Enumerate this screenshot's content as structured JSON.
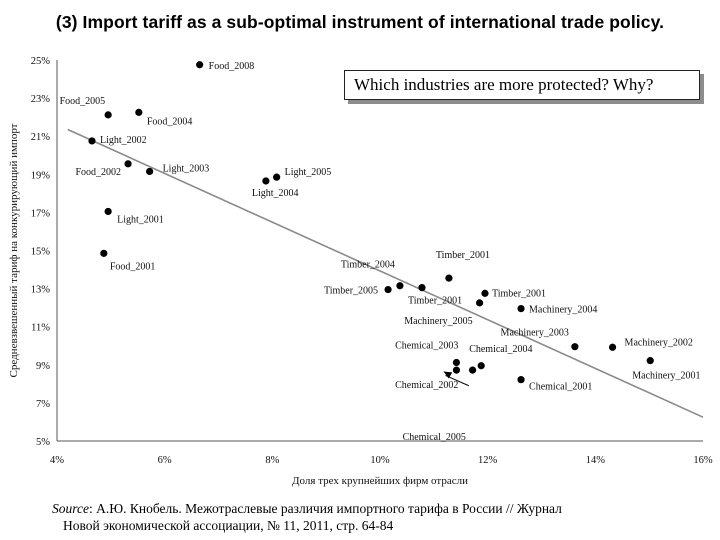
{
  "title": "(3) Import tariff as a sub-optimal instrument of international trade policy.",
  "callout": "Which industries are more protected? Why?",
  "source": {
    "label": "Source",
    "line1": ": А.Ю. Кнобель. Межотраслевые различия импортного тарифа в России // Журнал",
    "line2": "Новой экономической ассоциации, № 11, 2011,  стр. 64-84"
  },
  "chart_data": {
    "type": "scatter",
    "title": "",
    "xlabel": "Доля трех крупнейших фирм отрасли",
    "ylabel": "Средневзвешенный тариф на конкурирующий импорт",
    "xlim": [
      0.04,
      0.16
    ],
    "ylim": [
      0.05,
      0.25
    ],
    "x_ticks": [
      "4%",
      "6%",
      "8%",
      "10%",
      "12%",
      "14%",
      "16%"
    ],
    "y_ticks": [
      "5%",
      "7%",
      "9%",
      "11%",
      "13%",
      "15%",
      "17%",
      "19%",
      "21%",
      "23%",
      "25%"
    ],
    "grid": false,
    "trendline": {
      "x": [
        0.042,
        0.16
      ],
      "y": [
        0.2135,
        0.0625
      ]
    },
    "annotation_arrow": {
      "label": "Chemical_2005",
      "from": [
        0.1165,
        0.079
      ],
      "to": [
        0.1118,
        0.0865
      ]
    },
    "points": [
      {
        "label": "Food_2008",
        "x": 0.0665,
        "y": 0.2475
      },
      {
        "label": "Food_2005",
        "x": 0.0495,
        "y": 0.2212
      },
      {
        "label": "Food_2004",
        "x": 0.0552,
        "y": 0.2225
      },
      {
        "label": "Light_2002",
        "x": 0.0465,
        "y": 0.2075
      },
      {
        "label": "Food_2002",
        "x": 0.0532,
        "y": 0.1955
      },
      {
        "label": "Light_2003",
        "x": 0.0572,
        "y": 0.1915
      },
      {
        "label": "Light_2004",
        "x": 0.0788,
        "y": 0.1865
      },
      {
        "label": "Light_2005",
        "x": 0.0808,
        "y": 0.1885
      },
      {
        "label": "Light_2001",
        "x": 0.0495,
        "y": 0.1705
      },
      {
        "label": "Food_2001",
        "x": 0.0487,
        "y": 0.1485
      },
      {
        "label": "Timber_2004",
        "x": 0.1037,
        "y": 0.1315
      },
      {
        "label": "Timber_2005",
        "x": 0.1015,
        "y": 0.1295
      },
      {
        "label": "Timber_2001",
        "x": 0.1078,
        "y": 0.1305
      },
      {
        "label": "Timber_2001",
        "x": 0.1128,
        "y": 0.1355
      },
      {
        "label": "Timber_2001",
        "x": 0.1195,
        "y": 0.1275
      },
      {
        "label": "Machinery_2005",
        "x": 0.1185,
        "y": 0.1225
      },
      {
        "label": "Machinery_2004",
        "x": 0.1262,
        "y": 0.1195
      },
      {
        "label": "Machinery_2003",
        "x": 0.1362,
        "y": 0.0995
      },
      {
        "label": "Machinery_2002",
        "x": 0.1432,
        "y": 0.0992
      },
      {
        "label": "Machinery_2001",
        "x": 0.1502,
        "y": 0.0922
      },
      {
        "label": "Chemical_2003",
        "x": 0.1142,
        "y": 0.0912
      },
      {
        "label": "Chemical_2004",
        "x": 0.1188,
        "y": 0.0895
      },
      {
        "label": "Chemical_2002",
        "x": 0.1142,
        "y": 0.0872
      },
      {
        "label": "Chemical_2005",
        "x": 0.1172,
        "y": 0.0872
      },
      {
        "label": "Chemical_2001",
        "x": 0.1262,
        "y": 0.0822
      }
    ]
  }
}
